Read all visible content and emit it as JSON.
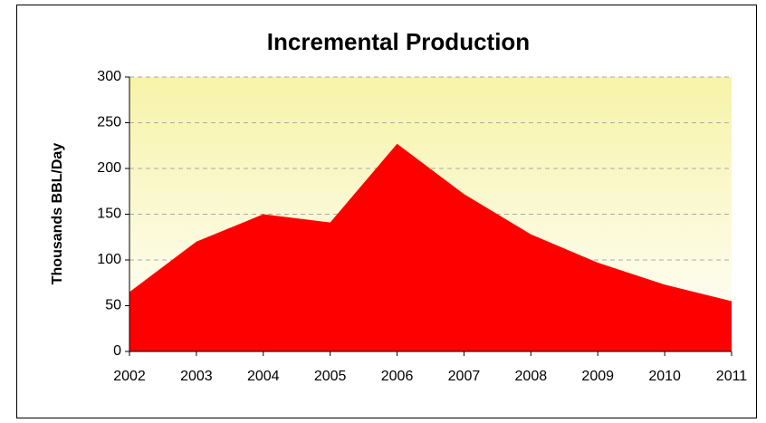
{
  "chart_data": {
    "type": "area",
    "title": "Incremental Production",
    "ylabel": "Thousands BBL/Day",
    "categories": [
      "2002",
      "2003",
      "2004",
      "2005",
      "2006",
      "2007",
      "2008",
      "2009",
      "2010",
      "2011"
    ],
    "values": [
      65,
      120,
      150,
      141,
      227,
      172,
      128,
      97,
      73,
      55
    ],
    "color": "#ff0000",
    "ylim": [
      0,
      300
    ],
    "yticks": [
      0,
      50,
      100,
      150,
      200,
      250,
      300
    ],
    "grid": true
  }
}
